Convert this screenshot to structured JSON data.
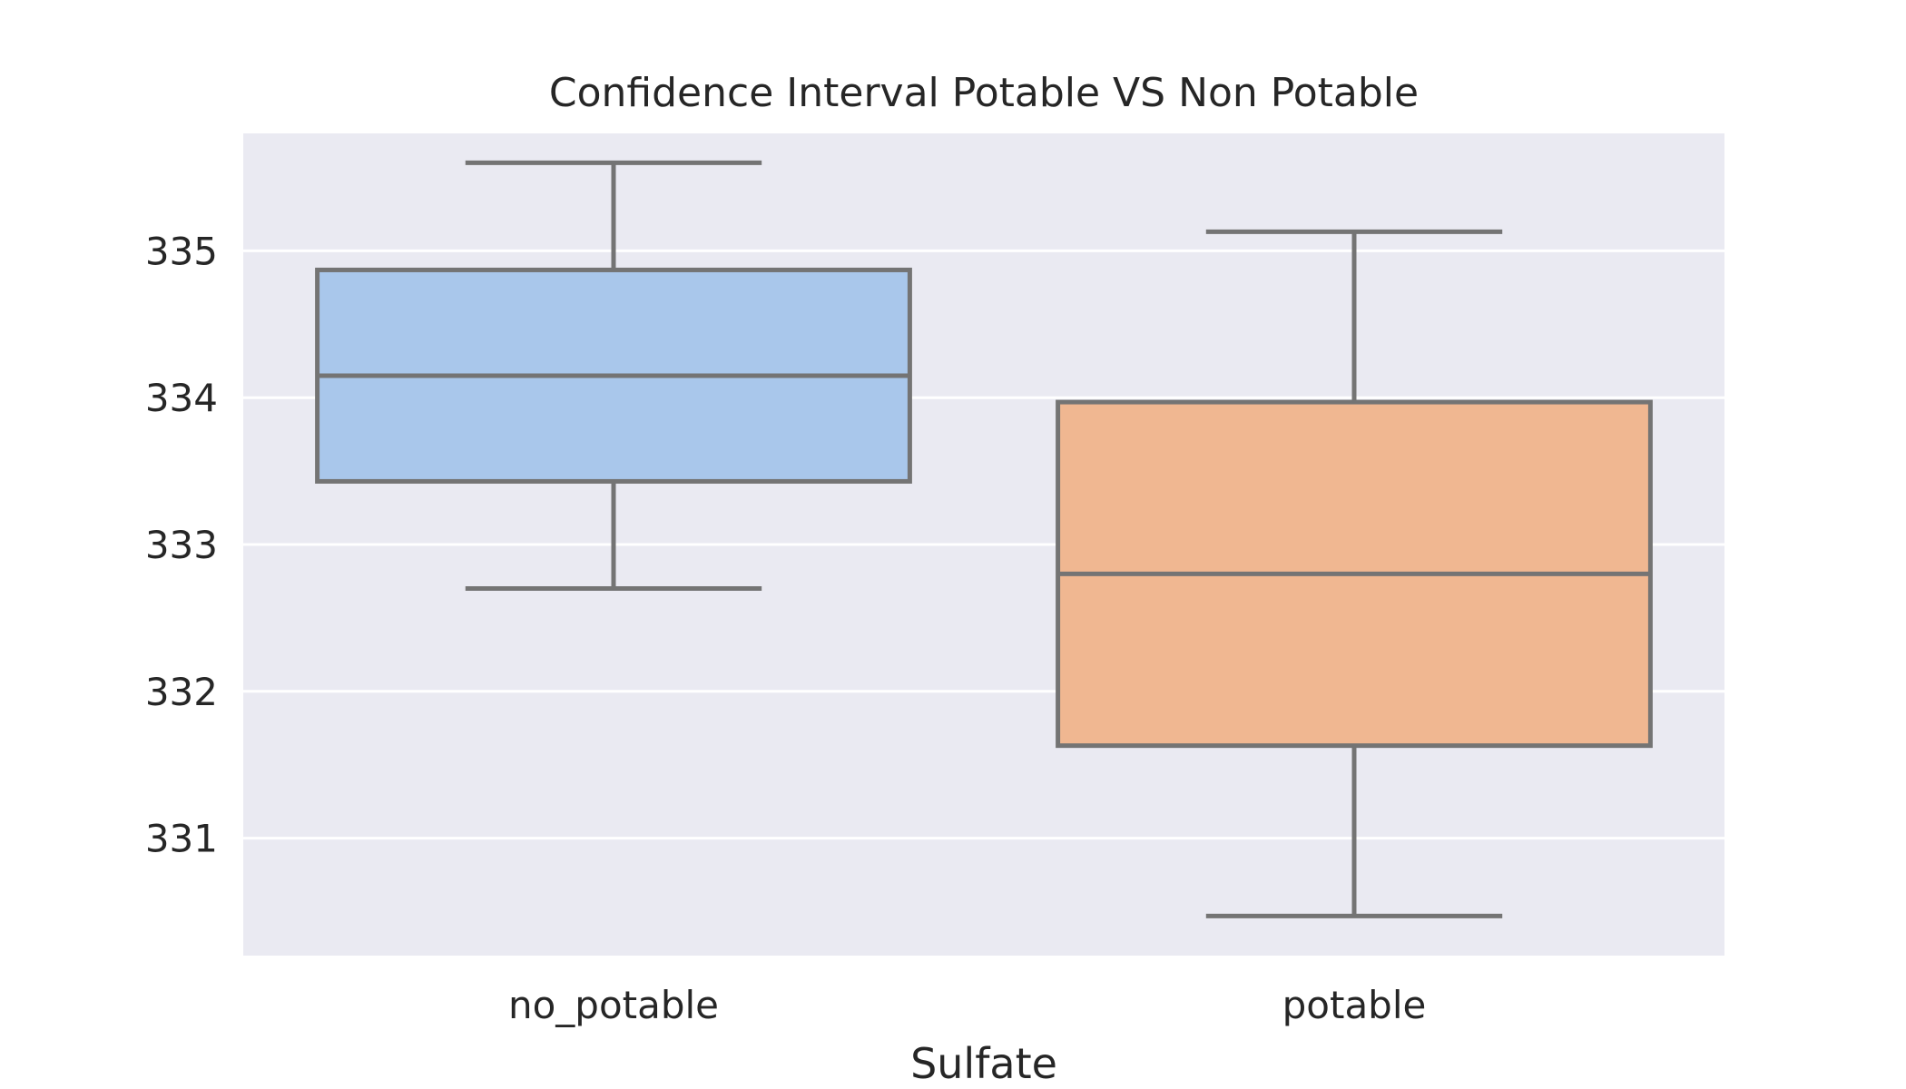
{
  "chart_data": {
    "type": "box",
    "title": "Confidence Interval Potable VS Non Potable",
    "xlabel": "Sulfate",
    "ylabel": "",
    "categories": [
      "no_potable",
      "potable"
    ],
    "ylim": [
      330.2,
      335.8
    ],
    "yticks": [
      331,
      332,
      333,
      334,
      335
    ],
    "grid": true,
    "boxes": [
      {
        "category": "no_potable",
        "whisker_low": 332.7,
        "q1": 333.43,
        "median": 334.15,
        "q3": 334.87,
        "whisker_high": 335.6
      },
      {
        "category": "potable",
        "whisker_low": 330.47,
        "q1": 331.63,
        "median": 332.8,
        "q3": 333.97,
        "whisker_high": 335.13
      }
    ],
    "colors": {
      "plot_background": "#eaeaf2",
      "grid": "#ffffff",
      "box_line": "#747474",
      "boxes": [
        "#a9c7eb",
        "#f0b791"
      ]
    }
  }
}
